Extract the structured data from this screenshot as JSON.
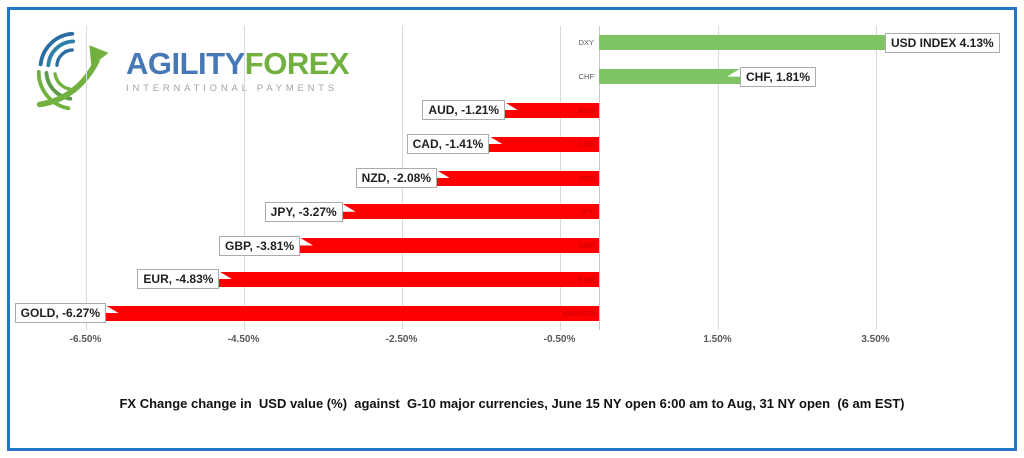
{
  "brand": {
    "name_part1": "AGILITY",
    "name_part2": "FOREX",
    "tagline": "INTERNATIONAL PAYMENTS"
  },
  "chart_data": {
    "type": "bar",
    "orientation": "horizontal",
    "title": "FX Change change in  USD value (%)  against  G-10 major currencies, June 15 NY open 6:00 am to Aug, 31 NY open  (6 am EST)",
    "categories": [
      "DXY",
      "CHF",
      "AUD",
      "CAD",
      "NZD",
      "JPY",
      "GBP",
      "EUR",
      "XAUUSD"
    ],
    "values": [
      4.13,
      1.81,
      -1.21,
      -1.41,
      -2.08,
      -3.27,
      -3.81,
      -4.83,
      -6.27
    ],
    "data_labels": [
      "USD INDEX 4.13%",
      "CHF, 1.81%",
      "AUD, -1.21%",
      "CAD, -1.41%",
      "NZD, -2.08%",
      "JPY, -3.27%",
      "GBP, -3.81%",
      "EUR, -4.83%",
      "GOLD, -6.27%"
    ],
    "x_ticks": [
      "-6.50%",
      "-4.50%",
      "-2.50%",
      "-0.50%",
      "1.50%",
      "3.50%"
    ],
    "x_tick_values": [
      -6.5,
      -4.5,
      -2.5,
      -0.5,
      1.5,
      3.5
    ],
    "xlim": [
      -7.2,
      5.1
    ],
    "grid": true,
    "legend": false,
    "positive_color": "#7EC465",
    "negative_color": "#FF0000",
    "category_label_color_negative": "#C00000",
    "category_label_color_positive": "#595959"
  }
}
